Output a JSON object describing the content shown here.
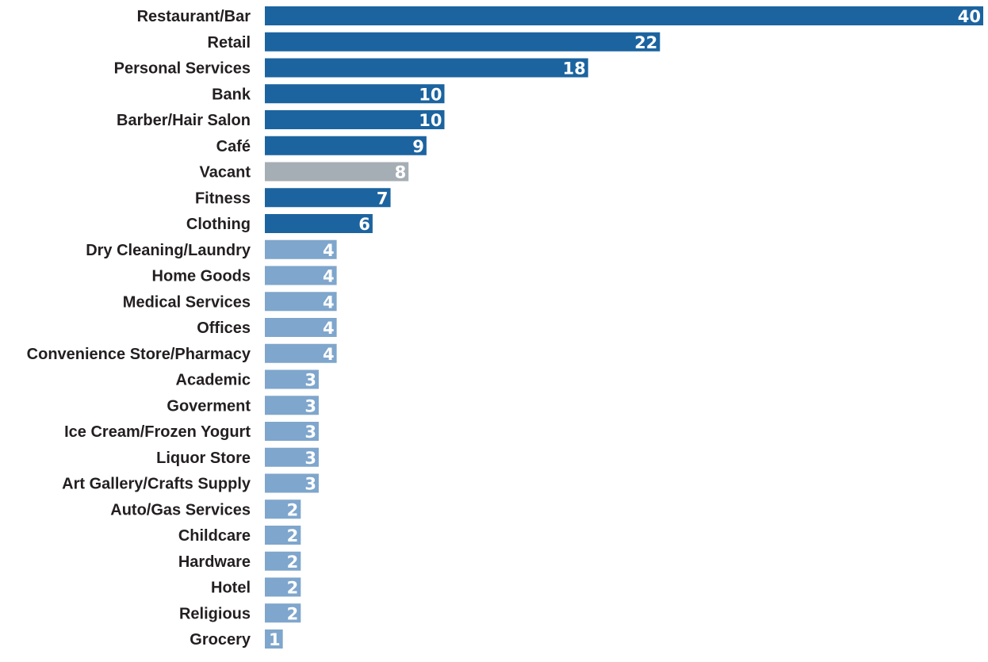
{
  "chart_data": {
    "type": "bar",
    "orientation": "horizontal",
    "title": "",
    "xlabel": "",
    "ylabel": "",
    "xlim": [
      0,
      40
    ],
    "grid": false,
    "legend": "none",
    "categories": [
      "Restaurant/Bar",
      "Retail",
      "Personal Services",
      "Bank",
      "Barber/Hair Salon",
      "Café",
      "Vacant",
      "Fitness",
      "Clothing",
      "Dry Cleaning/Laundry",
      "Home Goods",
      "Medical Services",
      "Offices",
      "Convenience Store/Pharmacy",
      "Academic",
      "Goverment",
      "Ice Cream/Frozen Yogurt",
      "Liquor Store",
      "Art Gallery/Crafts Supply",
      "Auto/Gas Services",
      "Childcare",
      "Hardware",
      "Hotel",
      "Religious",
      "Grocery"
    ],
    "values": [
      40,
      22,
      18,
      10,
      10,
      9,
      8,
      7,
      6,
      4,
      4,
      4,
      4,
      4,
      3,
      3,
      3,
      3,
      3,
      2,
      2,
      2,
      2,
      2,
      1
    ],
    "value_labels": [
      "40",
      "22",
      "18",
      "10",
      "10",
      "9",
      "8",
      "7",
      "6",
      "4",
      "4",
      "4",
      "4",
      "4",
      "3",
      "3",
      "3",
      "3",
      "3",
      "2",
      "2",
      "2",
      "2",
      "2",
      "1"
    ],
    "colors": {
      "dark": "#1c64a0",
      "gray": "#a6aeb5",
      "light": "#7fa6cc"
    },
    "bar_color_keys": [
      "dark",
      "dark",
      "dark",
      "dark",
      "dark",
      "dark",
      "gray",
      "dark",
      "dark",
      "light",
      "light",
      "light",
      "light",
      "light",
      "light",
      "light",
      "light",
      "light",
      "light",
      "light",
      "light",
      "light",
      "light",
      "light",
      "light"
    ]
  }
}
